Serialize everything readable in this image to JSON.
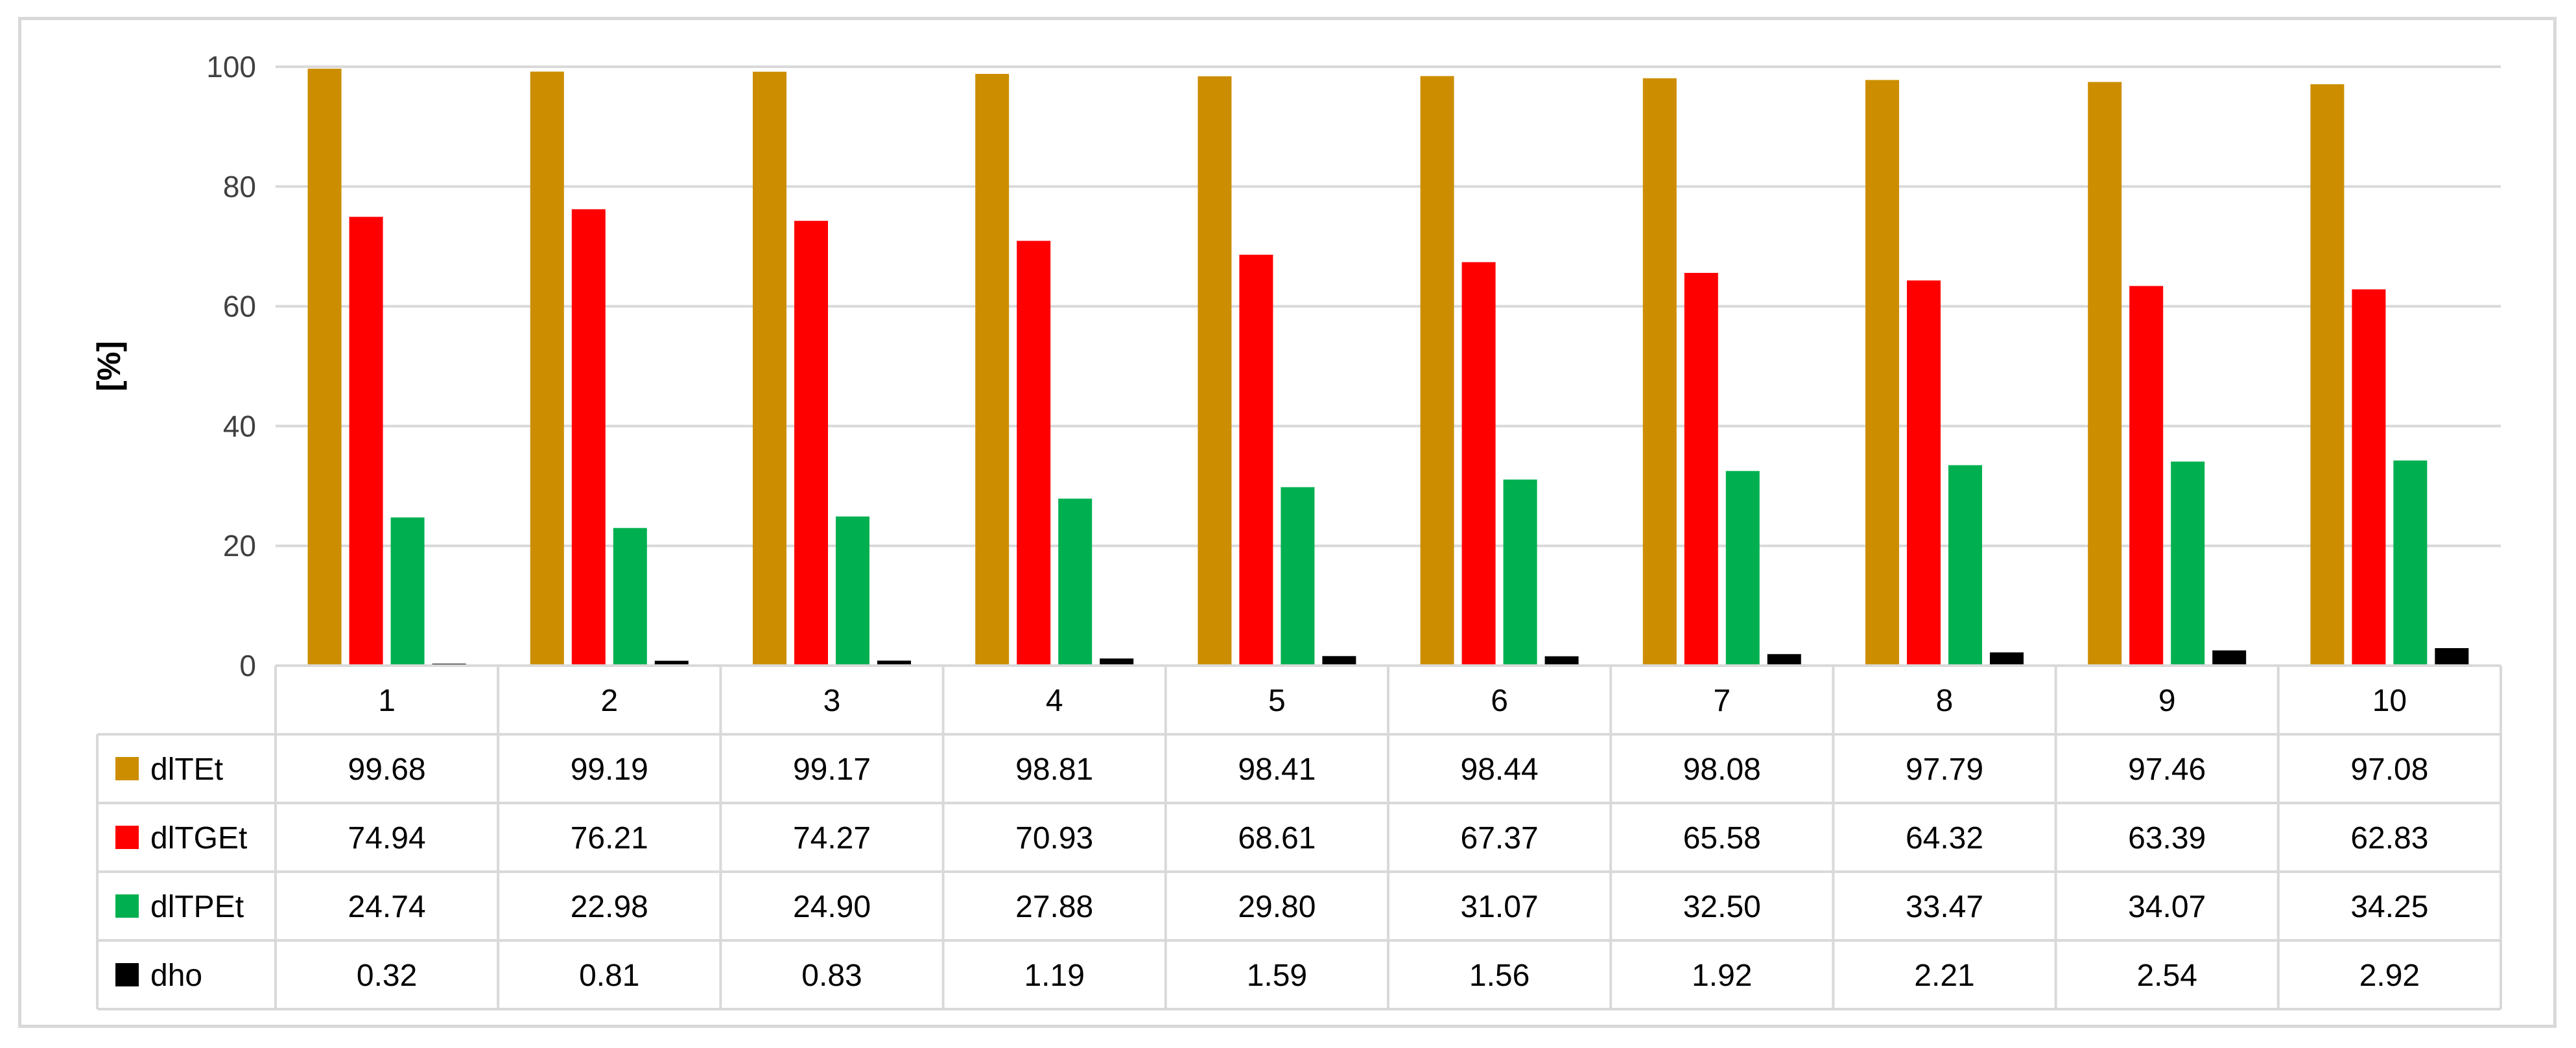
{
  "chart_data": {
    "type": "bar",
    "title": "",
    "xlabel": "",
    "ylabel": "[%]",
    "ylim": [
      0,
      100
    ],
    "yticks": [
      "0",
      "20",
      "40",
      "60",
      "80",
      "100"
    ],
    "grid": true,
    "legend": "data-table-left",
    "categories": [
      "1",
      "2",
      "3",
      "4",
      "5",
      "6",
      "7",
      "8",
      "9",
      "10"
    ],
    "series": [
      {
        "name": "dlTEt",
        "color": "#cc8e00",
        "values": [
          99.68,
          99.19,
          99.17,
          98.81,
          98.41,
          98.44,
          98.08,
          97.79,
          97.46,
          97.08
        ],
        "labels": [
          "99.68",
          "99.19",
          "99.17",
          "98.81",
          "98.41",
          "98.44",
          "98.08",
          "97.79",
          "97.46",
          "97.08"
        ]
      },
      {
        "name": "dlTGEt",
        "color": "#ff0000",
        "values": [
          74.94,
          76.21,
          74.27,
          70.93,
          68.61,
          67.37,
          65.58,
          64.32,
          63.39,
          62.83
        ],
        "labels": [
          "74.94",
          "76.21",
          "74.27",
          "70.93",
          "68.61",
          "67.37",
          "65.58",
          "64.32",
          "63.39",
          "62.83"
        ]
      },
      {
        "name": "dlTPEt",
        "color": "#00b050",
        "values": [
          24.74,
          22.98,
          24.9,
          27.88,
          29.8,
          31.07,
          32.5,
          33.47,
          34.07,
          34.25
        ],
        "labels": [
          "24.74",
          "22.98",
          "24.90",
          "27.88",
          "29.80",
          "31.07",
          "32.50",
          "33.47",
          "34.07",
          "34.25"
        ]
      },
      {
        "name": "dho",
        "color": "#000000",
        "values": [
          0.32,
          0.81,
          0.83,
          1.19,
          1.59,
          1.56,
          1.92,
          2.21,
          2.54,
          2.92
        ],
        "labels": [
          "0.32",
          "0.81",
          "0.83",
          "1.19",
          "1.59",
          "1.56",
          "1.92",
          "2.21",
          "2.54",
          "2.92"
        ]
      }
    ]
  }
}
